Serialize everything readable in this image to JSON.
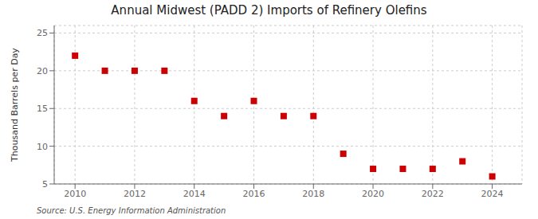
{
  "chart_data": {
    "type": "scatter",
    "title": "Annual Midwest (PADD 2) Imports of Refinery Olefins",
    "ylabel": "Thousand Barrels per Day",
    "annotations": [
      "Source: U.S. Energy Information Administration"
    ],
    "x": [
      2010,
      2011,
      2012,
      2013,
      2014,
      2015,
      2016,
      2017,
      2018,
      2019,
      2020,
      2021,
      2022,
      2023,
      2024
    ],
    "values": [
      22,
      20,
      20,
      20,
      16,
      14,
      16,
      14,
      14,
      9,
      7,
      7,
      7,
      8,
      6
    ],
    "color": "#cc0000",
    "marker": "square",
    "xlim": [
      2009.3,
      2025.0
    ],
    "ylim": [
      5,
      26
    ],
    "xticks": [
      2010,
      2012,
      2014,
      2016,
      2018,
      2020,
      2022,
      2024
    ],
    "yticks": [
      5,
      10,
      15,
      20,
      25
    ],
    "grid": true
  }
}
